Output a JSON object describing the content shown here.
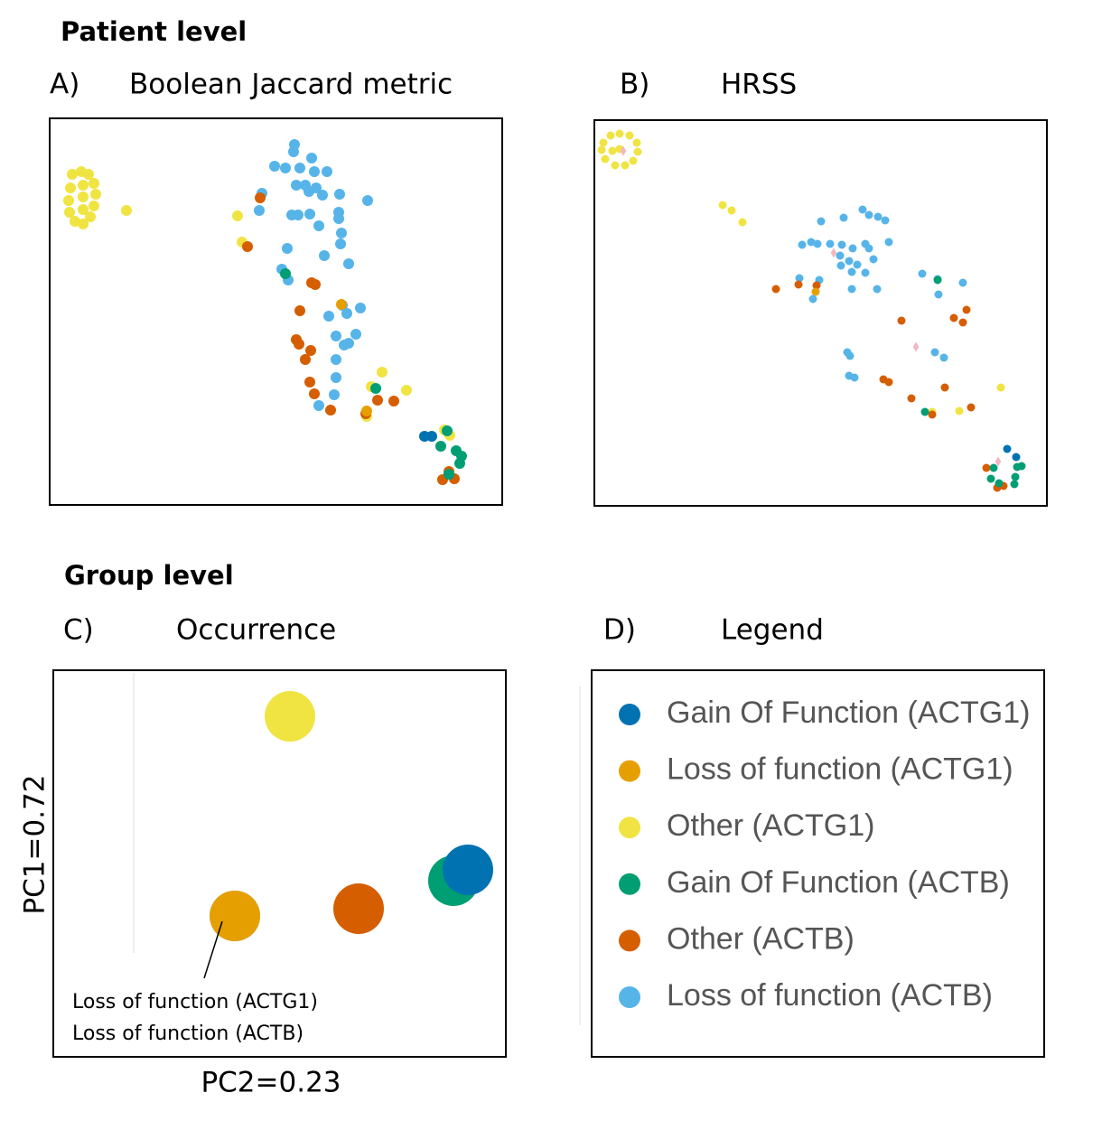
{
  "sections": [
    "Patient level",
    "Group level"
  ],
  "chart_data": [
    {
      "type": "scatter",
      "panel": "A)",
      "title": "Boolean Jaccard metric",
      "xlim": [
        0,
        501
      ],
      "ylim": [
        0,
        428
      ],
      "series": [
        {
          "color": "#f0e442",
          "x": [
            25,
            35,
            43,
            49,
            51,
            49,
            45,
            37,
            28,
            22,
            21,
            23,
            37,
            37,
            37,
            85,
            208,
            213,
            368,
            356,
            395,
            351,
            437,
            443
          ],
          "y": [
            366,
            369,
            366,
            356,
            344,
            331,
            319,
            311,
            314,
            324,
            337,
            351,
            341,
            354,
            327,
            326,
            320,
            291,
            147,
            131,
            127,
            98,
            83,
            77
          ]
        },
        {
          "color": "#56b4e9",
          "x": [
            271,
            270,
            290,
            307,
            249,
            261,
            277,
            293,
            273,
            283,
            295,
            287,
            235,
            302,
            321,
            352,
            232,
            268,
            275,
            288,
            320,
            320,
            298,
            323,
            322,
            263,
            304,
            257,
            331,
            264,
            324,
            344,
            309,
            329,
            317,
            339,
            331,
            317,
            317,
            315,
            298,
            326
          ],
          "y": [
            399,
            391,
            384,
            369,
            375,
            373,
            373,
            369,
            354,
            354,
            351,
            347,
            345,
            343,
            344,
            337,
            326,
            321,
            321,
            322,
            324,
            317,
            309,
            301,
            289,
            284,
            276,
            261,
            267,
            249,
            221,
            218,
            209,
            212,
            187,
            189,
            179,
            161,
            141,
            122,
            110,
            177
          ]
        },
        {
          "color": "#d55e00",
          "x": [
            219,
            233,
            290,
            294,
            277,
            273,
            276,
            289,
            283,
            288,
            293,
            311,
            350,
            363,
            381,
            435,
            448,
            442
          ],
          "y": [
            286,
            340,
            246,
            244,
            215,
            183,
            178,
            171,
            161,
            136,
            123,
            105,
            101,
            116,
            115,
            28,
            29,
            37
          ]
        },
        {
          "color": "#e69f00",
          "x": [
            323,
            351
          ],
          "y": [
            222,
            104
          ]
        },
        {
          "color": "#009e73",
          "x": [
            261,
            361,
            440,
            433,
            450,
            454,
            442,
            456
          ],
          "y": [
            256,
            129,
            82,
            65,
            60,
            46,
            34,
            54
          ]
        },
        {
          "color": "#0072b2",
          "x": [
            415,
            423
          ],
          "y": [
            76,
            76
          ]
        }
      ]
    },
    {
      "type": "scatter",
      "panel": "B)",
      "title": "HRSS",
      "xlim": [
        0,
        501
      ],
      "ylim": [
        0,
        427
      ],
      "series": [
        {
          "color": "#f0e442",
          "x": [
            10,
            18,
            28,
            39,
            47,
            48,
            43,
            34,
            23,
            12,
            8,
            28,
            20,
            142,
            152,
            164,
            450,
            404,
            374
          ],
          "y": [
            402,
            410,
            412,
            410,
            402,
            392,
            382,
            377,
            377,
            384,
            394,
            395,
            393,
            333,
            327,
            314,
            131,
            105,
            104
          ]
        },
        {
          "color": "#56b4e9",
          "x": [
            297,
            276,
            251,
            314,
            322,
            304,
            230,
            240,
            247,
            261,
            274,
            286,
            300,
            304,
            326,
            272,
            282,
            291,
            273,
            309,
            285,
            300,
            227,
            249,
            242,
            285,
            313,
            363,
            380,
            408,
            381,
            280,
            283,
            282,
            288,
            377,
            387
          ],
          "y": [
            328,
            319,
            315,
            320,
            316,
            322,
            289,
            292,
            290,
            290,
            289,
            285,
            290,
            285,
            292,
            277,
            271,
            267,
            266,
            273,
            259,
            258,
            252,
            250,
            229,
            240,
            240,
            257,
            251,
            247,
            234,
            170,
            166,
            144,
            142,
            170,
            164
          ]
        },
        {
          "color": "#d55e00",
          "x": [
            201,
            226,
            246,
            340,
            412,
            398,
            408,
            320,
            326,
            351,
            388,
            417,
            374,
            434,
            446,
            453
          ],
          "y": [
            240,
            245,
            244,
            205,
            217,
            208,
            203,
            140,
            137,
            119,
            131,
            109,
            101,
            42,
            20,
            22
          ]
        },
        {
          "color": "#e69f00",
          "x": [
            245
          ],
          "y": [
            237
          ]
        },
        {
          "color": "#009e73",
          "x": [
            380,
            366,
            442,
            468,
            466,
            448,
            465,
            439,
            473
          ],
          "y": [
            250,
            104,
            42,
            43,
            32,
            25,
            24,
            30,
            44
          ]
        },
        {
          "color": "#0072b2",
          "x": [
            457,
            467
          ],
          "y": [
            63,
            54
          ]
        },
        {
          "color": "#f4b6c2",
          "marker": "diamond",
          "x": [
            32,
            265,
            356,
            447
          ],
          "y": [
            393,
            280,
            176,
            49
          ]
        }
      ]
    },
    {
      "type": "scatter",
      "panel": "C)",
      "title": "Occurrence",
      "x_label": "PC2=0.23",
      "y_label": "PC1=0.72",
      "annotations": [
        "Loss of function (ACTG1)",
        "Loss of function (ACTB)"
      ],
      "xlim": [
        0,
        501
      ],
      "ylim": [
        0,
        428
      ],
      "series": [
        {
          "name": "Gain Of Function (ACTG1)",
          "color": "#0072b2",
          "x": [
            459
          ],
          "y": [
            207
          ]
        },
        {
          "name": "Loss of function (ACTG1)",
          "color": "#e69f00",
          "x": [
            201
          ],
          "y": [
            156
          ]
        },
        {
          "name": "Other (ACTG1)",
          "color": "#f0e442",
          "x": [
            262
          ],
          "y": [
            377
          ]
        },
        {
          "name": "Gain Of Function (ACTB)",
          "color": "#009e73",
          "x": [
            443
          ],
          "y": [
            195
          ]
        },
        {
          "name": "Other (ACTB)",
          "color": "#d55e00",
          "x": [
            338
          ],
          "y": [
            164
          ]
        },
        {
          "name": "Loss of function (ACTB)",
          "color": "#56b4e9",
          "x": [
            201
          ],
          "y": [
            156
          ]
        }
      ]
    }
  ],
  "legend": {
    "panel": "D)",
    "title": "Legend"
  }
}
